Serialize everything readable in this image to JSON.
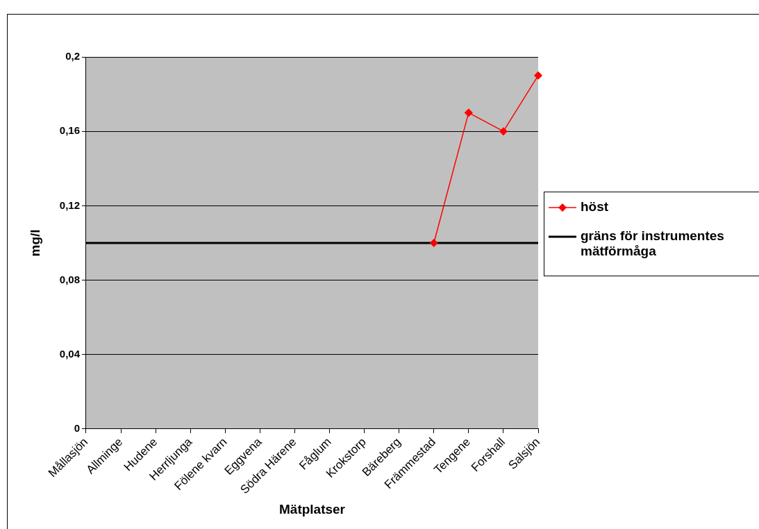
{
  "chart_data": {
    "type": "line",
    "xlabel": "Mätplatser",
    "ylabel": "mg/l",
    "categories": [
      "Mållasjön",
      "Allminge",
      "Hudene",
      "Herrljunga",
      "Fölene kvarn",
      "Eggvena",
      "Södra Härene",
      "Fåglum",
      "Krokstorp",
      "Bäreberg",
      "Främmestad",
      "Tengene",
      "Forshall",
      "Salsjön"
    ],
    "series": [
      {
        "name": "höst",
        "color": "#ff0000",
        "marker": "diamond",
        "values": [
          null,
          null,
          null,
          null,
          null,
          null,
          null,
          null,
          null,
          null,
          0.1,
          0.17,
          0.16,
          0.19
        ]
      },
      {
        "name": "gräns för instrumentes mätförmåga",
        "color": "#000000",
        "marker": "none",
        "values": [
          0.1,
          0.1,
          0.1,
          0.1,
          0.1,
          0.1,
          0.1,
          0.1,
          0.1,
          0.1,
          0.1,
          0.1,
          0.1,
          0.1
        ]
      }
    ],
    "ylim": [
      0,
      0.2
    ],
    "yticks": [
      0,
      {
        "value": 0.04,
        "label": "0,04"
      },
      {
        "value": 0.08,
        "label": "0,08"
      },
      {
        "value": 0.12,
        "label": "0,12"
      },
      {
        "value": 0.16,
        "label": "0,16"
      },
      {
        "value": 0.2,
        "label": "0,2"
      }
    ],
    "grid": "y",
    "legend": "right",
    "line_style": "solid"
  }
}
